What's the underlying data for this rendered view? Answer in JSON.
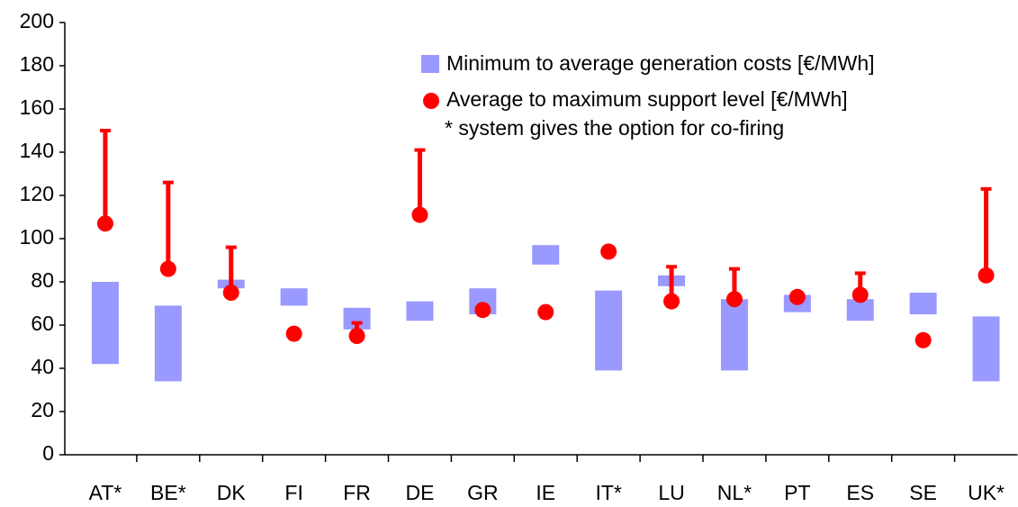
{
  "chart_data": {
    "type": "range-dot",
    "categories": [
      "AT*",
      "BE*",
      "DK",
      "FI",
      "FR",
      "DE",
      "GR",
      "IE",
      "IT*",
      "LU",
      "NL*",
      "PT",
      "ES",
      "SE",
      "UK*"
    ],
    "series": [
      {
        "name": "Minimum to average generation costs [€/MWh]",
        "color": "#9999ff",
        "low": [
          42,
          34,
          77,
          69,
          58,
          62,
          65,
          88,
          39,
          78,
          39,
          66,
          62,
          65,
          34
        ],
        "high": [
          80,
          69,
          81,
          77,
          68,
          71,
          77,
          97,
          76,
          83,
          72,
          74,
          72,
          75,
          64
        ]
      },
      {
        "name": "Average to maximum support level [€/MWh]",
        "color": "#ff0000",
        "values": [
          107,
          86,
          75,
          56,
          55,
          111,
          67,
          66,
          94,
          71,
          72,
          73,
          74,
          53,
          83
        ],
        "max": [
          150,
          126,
          96,
          null,
          61,
          141,
          null,
          null,
          null,
          87,
          86,
          null,
          84,
          null,
          123
        ]
      }
    ],
    "annotation": "* system gives the option for co-firing",
    "ylim": [
      0,
      200
    ],
    "yticks": [
      0,
      20,
      40,
      60,
      80,
      100,
      120,
      140,
      160,
      180,
      200
    ]
  }
}
